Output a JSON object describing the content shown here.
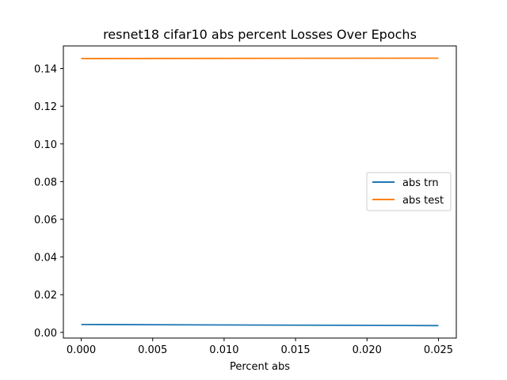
{
  "chart_data": {
    "type": "line",
    "title": "resnet18 cifar10 abs percent Losses Over Epochs",
    "xlabel": "Percent abs",
    "ylabel": "",
    "xlim": [
      -0.00125,
      0.02625
    ],
    "ylim": [
      -0.003,
      0.152
    ],
    "x_ticks": [
      "0.000",
      "0.005",
      "0.010",
      "0.015",
      "0.020",
      "0.025"
    ],
    "y_ticks": [
      "0.00",
      "0.02",
      "0.04",
      "0.06",
      "0.08",
      "0.10",
      "0.12",
      "0.14"
    ],
    "grid": false,
    "legend_position": "center-right",
    "x": [
      0.0,
      0.025
    ],
    "series": [
      {
        "name": "abs trn",
        "color": "#1f77b4",
        "values": [
          0.0042,
          0.0036
        ]
      },
      {
        "name": "abs test",
        "color": "#ff7f0e",
        "values": [
          0.1453,
          0.1455
        ]
      }
    ]
  }
}
